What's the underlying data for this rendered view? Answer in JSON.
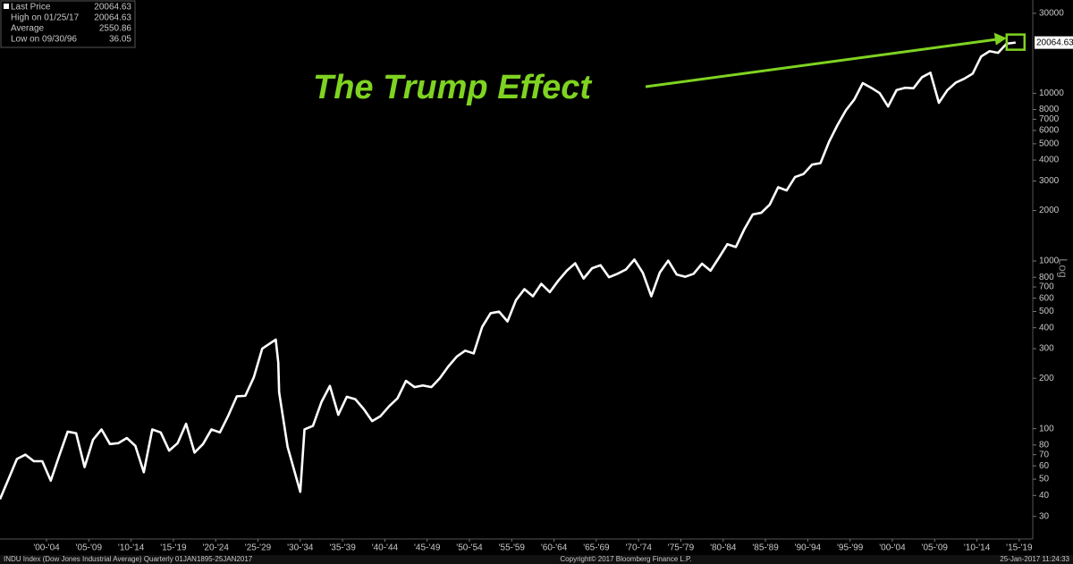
{
  "chart_data": {
    "type": "line",
    "log_scale": true,
    "legend": [
      {
        "label": "Last Price",
        "value": 20064.63
      },
      {
        "label": "High on 01/25/17",
        "value": 20064.63
      },
      {
        "label": "Average",
        "value": 2550.86
      },
      {
        "label": "Low on 09/30/96",
        "value": 36.05
      }
    ],
    "annotation": "The Trump Effect",
    "axis_label": "Log",
    "footer_left": "INDU Index (Dow Jones Industrial Average)  Quarterly 01JAN1895-25JAN2017",
    "footer_center": "Copyright© 2017 Bloomberg Finance L.P.",
    "footer_right": "25-Jan-2017 11:24:33",
    "annotation_color": "#7fd321",
    "series": [
      {
        "color": "#ffffff",
        "x": [
          1897,
          1898,
          1899,
          1900,
          1901,
          1902,
          1903,
          1904,
          1905,
          1906,
          1907,
          1908,
          1909,
          1910,
          1911,
          1912,
          1913,
          1914,
          1915,
          1916,
          1917,
          1918,
          1919,
          1920,
          1921,
          1922,
          1923,
          1924,
          1925,
          1926,
          1927,
          1928,
          1929.6,
          1929.9,
          1930,
          1931,
          1932.5,
          1933,
          1934,
          1935,
          1936,
          1937,
          1938,
          1939,
          1940,
          1941,
          1942,
          1943,
          1944,
          1945,
          1946,
          1947,
          1948,
          1949,
          1950,
          1951,
          1952,
          1953,
          1954,
          1955,
          1956,
          1957,
          1958,
          1959,
          1960,
          1961,
          1962,
          1963,
          1964,
          1965,
          1966,
          1967,
          1968,
          1969,
          1970,
          1971,
          1972,
          1973,
          1974,
          1975,
          1976,
          1977,
          1978,
          1979,
          1980,
          1981,
          1982,
          1983,
          1984,
          1985,
          1986,
          1987,
          1988,
          1989,
          1990,
          1991,
          1992,
          1993,
          1994,
          1995,
          1996,
          1997,
          1998,
          1999,
          2000,
          2001,
          2002,
          2003,
          2004,
          2005,
          2006,
          2007,
          2008,
          2009,
          2010,
          2011,
          2012,
          2013,
          2014,
          2015,
          2016,
          2017.07
        ],
        "values": [
          38,
          50,
          66,
          70,
          64,
          64,
          49,
          69,
          96,
          94,
          59,
          86,
          99,
          81,
          82,
          88,
          79,
          55,
          99,
          95,
          74,
          82,
          107,
          72,
          81,
          99,
          95,
          120,
          156,
          157,
          202,
          300,
          340,
          248,
          165,
          78,
          42,
          99,
          104,
          144,
          180,
          121,
          155,
          150,
          131,
          111,
          119,
          136,
          152,
          193,
          177,
          181,
          177,
          200,
          235,
          269,
          292,
          281,
          404,
          488,
          499,
          436,
          584,
          679,
          616,
          731,
          652,
          763,
          874,
          969,
          786,
          905,
          944,
          800,
          839,
          890,
          1020,
          851,
          616,
          852,
          1005,
          831,
          805,
          839,
          964,
          875,
          1047,
          1259,
          1212,
          1547,
          1896,
          1939,
          2169,
          2753,
          2634,
          3169,
          3301,
          3754,
          3834,
          5117,
          6448,
          7908,
          9181,
          11497,
          10787,
          10022,
          8342,
          10454,
          10783,
          10718,
          12463,
          13265,
          8776,
          10428,
          11578,
          12218,
          13104,
          16577,
          17823,
          17425,
          19763,
          20064.63
        ]
      }
    ],
    "xlim": [
      1897.0,
      2019.1
    ],
    "xticks": [
      {
        "value": 1902.5,
        "label": "'00-'04"
      },
      {
        "value": 1907.5,
        "label": "'05-'09"
      },
      {
        "value": 1912.5,
        "label": "'10-'14"
      },
      {
        "value": 1917.5,
        "label": "'15-'19"
      },
      {
        "value": 1922.5,
        "label": "'20-'24"
      },
      {
        "value": 1927.5,
        "label": "'25-'29"
      },
      {
        "value": 1932.5,
        "label": "'30-'34"
      },
      {
        "value": 1937.5,
        "label": "'35-'39"
      },
      {
        "value": 1942.5,
        "label": "'40-'44"
      },
      {
        "value": 1947.5,
        "label": "'45-'49"
      },
      {
        "value": 1952.5,
        "label": "'50-'54"
      },
      {
        "value": 1957.5,
        "label": "'55-'59"
      },
      {
        "value": 1962.5,
        "label": "'60-'64"
      },
      {
        "value": 1967.5,
        "label": "'65-'69"
      },
      {
        "value": 1972.5,
        "label": "'70-'74"
      },
      {
        "value": 1977.5,
        "label": "'75-'79"
      },
      {
        "value": 1982.5,
        "label": "'80-'84"
      },
      {
        "value": 1987.5,
        "label": "'85-'89"
      },
      {
        "value": 1992.5,
        "label": "'90-'94"
      },
      {
        "value": 1997.5,
        "label": "'95-'99"
      },
      {
        "value": 2002.5,
        "label": "'00-'04"
      },
      {
        "value": 2007.5,
        "label": "'05-'09"
      },
      {
        "value": 2012.5,
        "label": "'10-'14"
      },
      {
        "value": 2017.5,
        "label": "'15-'19"
      }
    ],
    "ylim": [
      22,
      36000
    ],
    "yticks": [
      30,
      40,
      50,
      60,
      70,
      80,
      100,
      200,
      300,
      400,
      500,
      600,
      700,
      800,
      1000,
      2000,
      3000,
      4000,
      5000,
      6000,
      7000,
      8000,
      10000,
      30000
    ]
  }
}
